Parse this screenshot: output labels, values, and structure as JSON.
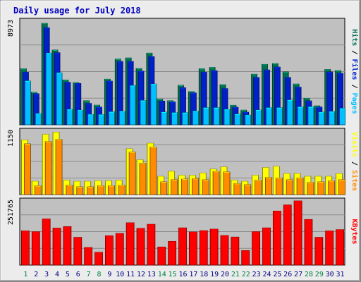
{
  "title": "Daily usage for July 2018",
  "colors": {
    "background": "#ececec",
    "plot_bg": "#c0c0c0",
    "title": "#0000c0",
    "hits": "#006f4f",
    "files": "#0020c8",
    "pages": "#00c0ff",
    "visits": "#ffff00",
    "sites": "#ff8c00",
    "kbytes": "#ff0000",
    "weekend_day": "#008040",
    "weekday": "#000080"
  },
  "chart_data": [
    {
      "type": "bar",
      "panel": "hits-files-pages",
      "ylabel_parts": [
        "Pages",
        "Files",
        "Hits"
      ],
      "ymax_label": "8973",
      "ylim": [
        0,
        8973
      ],
      "categories": [
        "1",
        "2",
        "3",
        "4",
        "5",
        "6",
        "7",
        "8",
        "9",
        "10",
        "11",
        "12",
        "13",
        "14",
        "15",
        "16",
        "17",
        "18",
        "19",
        "20",
        "21",
        "22",
        "23",
        "24",
        "25",
        "26",
        "27",
        "28",
        "29",
        "30",
        "31"
      ],
      "series": [
        {
          "name": "Hits",
          "values": [
            4850,
            2810,
            8780,
            6470,
            3880,
            3650,
            2080,
            1700,
            3950,
            5690,
            5790,
            4870,
            6210,
            2220,
            2080,
            3420,
            2870,
            4850,
            4970,
            3470,
            1690,
            1270,
            4380,
            5230,
            5300,
            4580,
            3530,
            2290,
            1640,
            4790,
            4690
          ]
        },
        {
          "name": "Files",
          "values": [
            4550,
            2690,
            8400,
            6240,
            3680,
            3580,
            1850,
            1530,
            3780,
            5480,
            5480,
            4640,
            5900,
            2050,
            1980,
            3210,
            2760,
            4560,
            4680,
            3130,
            1520,
            1090,
            4100,
            4750,
            5000,
            4100,
            3260,
            2070,
            1530,
            4580,
            4460
          ]
        },
        {
          "name": "Pages",
          "values": [
            3800,
            970,
            6210,
            4500,
            1330,
            1270,
            890,
            880,
            1120,
            1160,
            3390,
            2100,
            3530,
            1100,
            1050,
            1050,
            1180,
            1480,
            1480,
            1330,
            920,
            840,
            1280,
            1480,
            1480,
            2140,
            1550,
            1550,
            1090,
            1140,
            1420
          ]
        }
      ]
    },
    {
      "type": "bar",
      "panel": "visits-sites",
      "ylabel_parts": [
        "Sites",
        "Visits"
      ],
      "ymax_label": "1150",
      "ylim": [
        0,
        1150
      ],
      "categories": [
        "1",
        "2",
        "3",
        "4",
        "5",
        "6",
        "7",
        "8",
        "9",
        "10",
        "11",
        "12",
        "13",
        "14",
        "15",
        "16",
        "17",
        "18",
        "19",
        "20",
        "21",
        "22",
        "23",
        "24",
        "25",
        "26",
        "27",
        "28",
        "29",
        "30",
        "31"
      ],
      "series": [
        {
          "name": "Visits",
          "values": [
            990,
            240,
            1090,
            1130,
            260,
            240,
            240,
            250,
            250,
            260,
            830,
            630,
            930,
            330,
            420,
            350,
            350,
            390,
            460,
            500,
            260,
            240,
            350,
            490,
            510,
            380,
            380,
            330,
            330,
            330,
            380
          ]
        },
        {
          "name": "Sites",
          "values": [
            920,
            160,
            960,
            1000,
            170,
            140,
            140,
            160,
            160,
            170,
            770,
            570,
            860,
            230,
            270,
            280,
            290,
            270,
            420,
            410,
            200,
            180,
            260,
            310,
            300,
            270,
            300,
            220,
            230,
            250,
            270
          ]
        }
      ]
    },
    {
      "type": "bar",
      "panel": "kbytes",
      "ylabel_parts": [
        "KBytes"
      ],
      "ymax_label": "251765",
      "ylim": [
        0,
        251765
      ],
      "categories": [
        "1",
        "2",
        "3",
        "4",
        "5",
        "6",
        "7",
        "8",
        "9",
        "10",
        "11",
        "12",
        "13",
        "14",
        "15",
        "16",
        "17",
        "18",
        "19",
        "20",
        "21",
        "22",
        "23",
        "24",
        "25",
        "26",
        "27",
        "28",
        "29",
        "30",
        "31"
      ],
      "series": [
        {
          "name": "KBytes",
          "values": [
            134000,
            131000,
            181000,
            145000,
            151000,
            109000,
            69000,
            50000,
            115000,
            124000,
            166000,
            144000,
            160000,
            71000,
            93000,
            146000,
            130000,
            135000,
            141000,
            116000,
            110000,
            57000,
            131000,
            146000,
            212000,
            236000,
            251765,
            179000,
            109000,
            134000,
            139000
          ]
        }
      ]
    }
  ],
  "x_labels": [
    "1",
    "2",
    "3",
    "4",
    "5",
    "6",
    "7",
    "8",
    "9",
    "10",
    "11",
    "12",
    "13",
    "14",
    "15",
    "16",
    "17",
    "18",
    "19",
    "20",
    "21",
    "22",
    "23",
    "24",
    "25",
    "26",
    "27",
    "28",
    "29",
    "30",
    "31"
  ],
  "weekend_days": [
    "1",
    "7",
    "8",
    "14",
    "15",
    "21",
    "22",
    "28",
    "29"
  ]
}
